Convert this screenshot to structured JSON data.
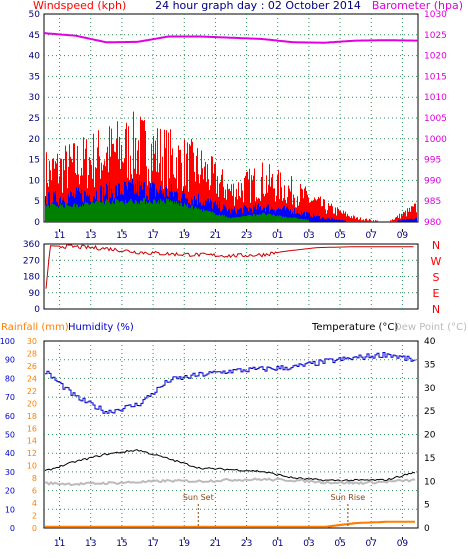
{
  "header": {
    "left_title": "Windspeed (kph)",
    "center_title": "24 hour graph day : 02 October 2014",
    "right_title": "Barometer (hpa)"
  },
  "panel3_header": {
    "rainfall": "Rainfall (mm)",
    "humidity": "Humidity (%)",
    "temperature": "Temperature (°C)",
    "dew_point": "Dew Point (°C)"
  },
  "x_ticks": [
    "11",
    "13",
    "15",
    "17",
    "19",
    "21",
    "23",
    "01",
    "03",
    "05",
    "07",
    "09"
  ],
  "x_ticks_bottom": [
    "11",
    "13",
    "15",
    "17",
    "19",
    "21",
    "23",
    "01",
    "03",
    "05",
    "07",
    "09"
  ],
  "compass": [
    "N",
    "W",
    "S",
    "E",
    "N"
  ],
  "sun_set_label": "Sun Set",
  "sun_rise_label": "Sun Rise",
  "colors": {
    "wind": "#ff0000",
    "gust_blue": "#0000ff",
    "wind_green": "#008000",
    "barometer": "#e000e0",
    "direction": "#cc0000",
    "humidity": "#0000cc",
    "temperature": "#000000",
    "dew_point": "#bbbbbb",
    "rainfall": "#ff8000",
    "grid": "#2e8b57"
  },
  "chart_data": [
    {
      "type": "area",
      "panel": "wind_barometer",
      "title": "24 hour graph day : 02 October 2014",
      "ylabel": "Windspeed (kph)",
      "y2label": "Barometer (hpa)",
      "x_hours": [
        10,
        12,
        14,
        16,
        18,
        20,
        22,
        24,
        26,
        28,
        30,
        32,
        34
      ],
      "ylim": [
        0,
        50
      ],
      "yticks": [
        0,
        5,
        10,
        15,
        20,
        25,
        30,
        35,
        40,
        45,
        50
      ],
      "y2lim": [
        980,
        1030
      ],
      "y2ticks": [
        980,
        985,
        990,
        995,
        1000,
        1005,
        1010,
        1015,
        1020,
        1025,
        1030
      ],
      "series": [
        {
          "name": "Windspeed (kph)",
          "color": "#ff0000",
          "values": [
            13,
            15,
            18,
            20,
            17,
            14,
            8,
            11,
            8,
            4,
            1,
            0,
            4
          ]
        },
        {
          "values": [
            6,
            7,
            8,
            9,
            8,
            6,
            3,
            4,
            3,
            1,
            0,
            0,
            1
          ]
        },
        {
          "values": [
            4,
            4,
            5,
            5,
            5,
            3,
            1,
            2,
            1,
            0,
            0,
            0,
            0
          ]
        },
        {
          "name": "Barometer (hpa)",
          "axis": "right",
          "color": "#e000e0",
          "values": [
            1025.4,
            1024.8,
            1023.2,
            1023.3,
            1024.6,
            1024.6,
            1024.3,
            1024.0,
            1023.2,
            1023.1,
            1023.6,
            1023.7,
            1023.6
          ]
        }
      ]
    },
    {
      "type": "line",
      "panel": "wind_direction",
      "x_hours": [
        10,
        10.4,
        12,
        14,
        16,
        18,
        20,
        22,
        24,
        25.5,
        27.5,
        30,
        34
      ],
      "ylim": [
        0,
        360
      ],
      "yticks": [
        0,
        90,
        180,
        270,
        360
      ],
      "series": [
        {
          "color": "#cc0000",
          "values": [
            0,
            350,
            345,
            335,
            315,
            305,
            300,
            295,
            300,
            320,
            340,
            345,
            345
          ]
        }
      ]
    },
    {
      "type": "line",
      "panel": "temp_humidity_rain",
      "x_hours": [
        10,
        12,
        14,
        16,
        18,
        20,
        22,
        24,
        26,
        28,
        30,
        32,
        34
      ],
      "humidity_ylim": [
        0,
        100
      ],
      "humidity_yticks": [
        0,
        10,
        20,
        30,
        40,
        50,
        60,
        70,
        80,
        90,
        100
      ],
      "rain_ylim": [
        0,
        30
      ],
      "rain_yticks": [
        0,
        2,
        4,
        6,
        8,
        10,
        12,
        14,
        16,
        18,
        20,
        22,
        24,
        26,
        28,
        30
      ],
      "temp_ylim": [
        0,
        40
      ],
      "temp_yticks": [
        0,
        5,
        10,
        15,
        20,
        25,
        30,
        35,
        40
      ],
      "series": [
        {
          "name": "Humidity (%)",
          "axis": "humidity",
          "color": "#0000cc",
          "values": [
            84,
            70,
            62,
            66,
            79,
            82,
            84,
            85,
            86,
            89,
            91,
            93,
            89
          ]
        },
        {
          "name": "Temperature (°C)",
          "axis": "temp",
          "color": "#000000",
          "values": [
            12.1,
            14.2,
            15.8,
            16.7,
            14.8,
            12.8,
            12.5,
            12.1,
            10.7,
            10.2,
            10.2,
            10.3,
            12.1
          ]
        },
        {
          "name": "Dew Point (°C)",
          "axis": "temp",
          "color": "#bbbbbb",
          "values": [
            9.6,
            9.4,
            9.6,
            9.8,
            10.1,
            10.0,
            10.3,
            10.4,
            10.2,
            9.8,
            9.6,
            9.9,
            10.3
          ]
        },
        {
          "name": "Rainfall (mm)",
          "axis": "rain",
          "color": "#ff8000",
          "values": [
            0.2,
            0.2,
            0.2,
            0.2,
            0.2,
            0.2,
            0.2,
            0.2,
            0.2,
            0.2,
            0.8,
            1.0,
            1.0
          ]
        }
      ],
      "annotations": [
        {
          "label": "Sun Set",
          "hour": 19.9
        },
        {
          "label": "Sun Rise",
          "hour": 29.5
        }
      ]
    }
  ]
}
